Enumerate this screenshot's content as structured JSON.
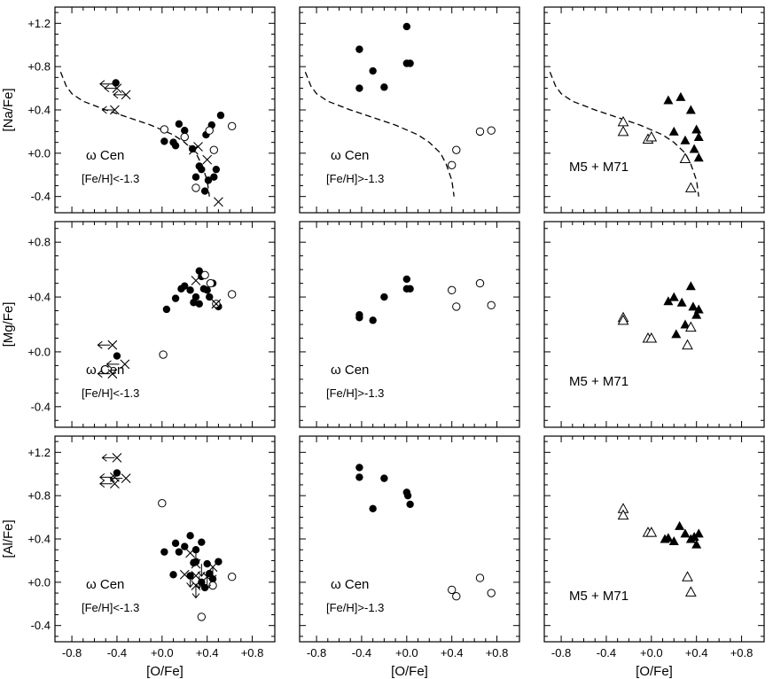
{
  "figure": {
    "x_axis_label": "[O/Fe]",
    "y_axis_labels": [
      "[Na/Fe]",
      "[Mg/Fe]",
      "[Al/Fe]"
    ]
  },
  "chart_data": [
    {
      "type": "scatter",
      "row": 0,
      "col": 0,
      "xlim": [
        -0.95,
        1.0
      ],
      "ylim": [
        -0.55,
        1.35
      ],
      "xticks": [
        -0.8,
        -0.4,
        0.0,
        0.4,
        0.8
      ],
      "xtick_labels": [
        "",
        "",
        "",
        "",
        ""
      ],
      "yticks": [
        -0.4,
        0.0,
        0.4,
        0.8,
        1.2
      ],
      "ytick_labels": [
        "-0.4",
        "+0.0",
        "+0.4",
        "+0.8",
        "+1.2"
      ],
      "annotation": "ω  Cen",
      "annotation_sub": "[Fe/H]<-1.3",
      "curve": [
        [
          -0.9,
          0.75
        ],
        [
          -0.85,
          0.62
        ],
        [
          -0.8,
          0.55
        ],
        [
          -0.7,
          0.48
        ],
        [
          -0.5,
          0.4
        ],
        [
          -0.3,
          0.33
        ],
        [
          -0.1,
          0.26
        ],
        [
          0.1,
          0.17
        ],
        [
          0.2,
          0.1
        ],
        [
          0.3,
          0.0
        ],
        [
          0.35,
          -0.1
        ],
        [
          0.4,
          -0.25
        ],
        [
          0.42,
          -0.4
        ]
      ],
      "filled_circles": [
        [
          -0.41,
          0.65
        ],
        [
          0.02,
          0.11
        ],
        [
          0.1,
          0.1
        ],
        [
          0.12,
          0.07
        ],
        [
          0.15,
          0.27
        ],
        [
          0.2,
          0.21
        ],
        [
          0.27,
          0.04
        ],
        [
          0.3,
          -0.22
        ],
        [
          0.33,
          -0.12
        ],
        [
          0.35,
          -0.15
        ],
        [
          0.38,
          -0.35
        ],
        [
          0.39,
          0.17
        ],
        [
          0.41,
          -0.25
        ],
        [
          0.44,
          0.26
        ],
        [
          0.46,
          -0.22
        ],
        [
          0.48,
          -0.15
        ],
        [
          0.52,
          0.35
        ]
      ],
      "open_circles": [
        [
          0.02,
          0.22
        ],
        [
          0.2,
          0.15
        ],
        [
          0.3,
          -0.32
        ],
        [
          0.42,
          0.21
        ],
        [
          0.46,
          0.03
        ],
        [
          0.62,
          0.25
        ]
      ],
      "crosses": [
        [
          -0.4,
          0.6
        ],
        [
          -0.32,
          0.54
        ],
        [
          -0.42,
          0.4
        ],
        [
          0.28,
          0.03
        ],
        [
          0.32,
          0.06
        ],
        [
          0.4,
          -0.06
        ],
        [
          0.5,
          -0.45
        ]
      ],
      "upper_limits": [
        [
          -0.44,
          0.64
        ],
        [
          -0.4,
          0.6
        ],
        [
          -0.32,
          0.54
        ],
        [
          -0.42,
          0.4
        ]
      ]
    },
    {
      "type": "scatter",
      "row": 0,
      "col": 1,
      "xlim": [
        -0.95,
        1.0
      ],
      "ylim": [
        -0.55,
        1.35
      ],
      "xticks": [
        -0.8,
        -0.4,
        0.0,
        0.4,
        0.8
      ],
      "xtick_labels": [
        "",
        "",
        "",
        "",
        ""
      ],
      "yticks": [
        -0.4,
        0.0,
        0.4,
        0.8,
        1.2
      ],
      "ytick_labels": [
        "",
        "",
        "",
        "",
        ""
      ],
      "annotation": "ω  Cen",
      "annotation_sub": "[Fe/H]>-1.3",
      "curve": [
        [
          -0.9,
          0.75
        ],
        [
          -0.85,
          0.62
        ],
        [
          -0.8,
          0.55
        ],
        [
          -0.7,
          0.48
        ],
        [
          -0.5,
          0.4
        ],
        [
          -0.3,
          0.33
        ],
        [
          -0.1,
          0.26
        ],
        [
          0.1,
          0.17
        ],
        [
          0.2,
          0.1
        ],
        [
          0.3,
          0.0
        ],
        [
          0.35,
          -0.1
        ],
        [
          0.4,
          -0.25
        ],
        [
          0.42,
          -0.4
        ]
      ],
      "filled_circles": [
        [
          -0.42,
          0.96
        ],
        [
          -0.42,
          0.6
        ],
        [
          -0.3,
          0.76
        ],
        [
          -0.2,
          0.61
        ],
        [
          0.0,
          1.17
        ],
        [
          0.0,
          0.83
        ],
        [
          0.03,
          0.83
        ]
      ],
      "open_circles": [
        [
          0.4,
          -0.11
        ],
        [
          0.44,
          0.03
        ],
        [
          0.65,
          0.2
        ],
        [
          0.75,
          0.21
        ]
      ],
      "crosses": [],
      "upper_limits": []
    },
    {
      "type": "scatter",
      "row": 0,
      "col": 2,
      "xlim": [
        -0.95,
        1.0
      ],
      "ylim": [
        -0.55,
        1.35
      ],
      "xticks": [
        -0.8,
        -0.4,
        0.0,
        0.4,
        0.8
      ],
      "xtick_labels": [
        "",
        "",
        "",
        "",
        ""
      ],
      "yticks": [
        -0.4,
        0.0,
        0.4,
        0.8,
        1.2
      ],
      "ytick_labels": [
        "",
        "",
        "",
        "",
        ""
      ],
      "annotation": "M5  +  M71",
      "annotation_sub": "",
      "curve": [
        [
          -0.9,
          0.75
        ],
        [
          -0.85,
          0.62
        ],
        [
          -0.8,
          0.55
        ],
        [
          -0.7,
          0.48
        ],
        [
          -0.5,
          0.4
        ],
        [
          -0.3,
          0.33
        ],
        [
          -0.1,
          0.26
        ],
        [
          0.1,
          0.17
        ],
        [
          0.2,
          0.1
        ],
        [
          0.3,
          0.0
        ],
        [
          0.35,
          -0.1
        ],
        [
          0.4,
          -0.25
        ],
        [
          0.42,
          -0.4
        ]
      ],
      "filled_triangles": [
        [
          0.15,
          0.49
        ],
        [
          0.2,
          0.2
        ],
        [
          0.26,
          0.52
        ],
        [
          0.3,
          0.12
        ],
        [
          0.35,
          0.4
        ],
        [
          0.38,
          0.04
        ],
        [
          0.4,
          0.22
        ],
        [
          0.42,
          -0.04
        ],
        [
          0.42,
          0.15
        ]
      ],
      "open_triangles": [
        [
          -0.25,
          0.29
        ],
        [
          -0.25,
          0.2
        ],
        [
          -0.03,
          0.13
        ],
        [
          0.0,
          0.15
        ],
        [
          0.3,
          -0.05
        ],
        [
          0.35,
          -0.32
        ]
      ]
    },
    {
      "type": "scatter",
      "row": 1,
      "col": 0,
      "xlim": [
        -0.95,
        1.0
      ],
      "ylim": [
        -0.55,
        0.95
      ],
      "xticks": [
        -0.8,
        -0.4,
        0.0,
        0.4,
        0.8
      ],
      "xtick_labels": [
        "",
        "",
        "",
        "",
        ""
      ],
      "yticks": [
        -0.4,
        0.0,
        0.4,
        0.8
      ],
      "ytick_labels": [
        "-0.4",
        "+0.0",
        "+0.4",
        "+0.8"
      ],
      "annotation": "ω  Cen",
      "annotation_sub": "[Fe/H]<-1.3",
      "filled_circles": [
        [
          -0.4,
          -0.03
        ],
        [
          0.04,
          0.31
        ],
        [
          0.12,
          0.39
        ],
        [
          0.17,
          0.46
        ],
        [
          0.2,
          0.48
        ],
        [
          0.25,
          0.45
        ],
        [
          0.28,
          0.36
        ],
        [
          0.3,
          0.4
        ],
        [
          0.33,
          0.59
        ],
        [
          0.33,
          0.35
        ],
        [
          0.35,
          0.55
        ],
        [
          0.37,
          0.46
        ],
        [
          0.4,
          0.45
        ],
        [
          0.42,
          0.4
        ],
        [
          0.45,
          0.5
        ],
        [
          0.5,
          0.33
        ]
      ],
      "open_circles": [
        [
          0.01,
          -0.02
        ],
        [
          0.38,
          0.56
        ],
        [
          0.43,
          0.5
        ],
        [
          0.48,
          0.35
        ],
        [
          0.62,
          0.42
        ]
      ],
      "crosses": [
        [
          -0.44,
          0.05
        ],
        [
          -0.44,
          -0.16
        ],
        [
          -0.33,
          -0.09
        ],
        [
          0.3,
          0.52
        ],
        [
          0.48,
          0.35
        ]
      ],
      "upper_limits": [
        [
          -0.46,
          0.05
        ],
        [
          -0.46,
          -0.16
        ],
        [
          -0.38,
          -0.09
        ]
      ]
    },
    {
      "type": "scatter",
      "row": 1,
      "col": 1,
      "xlim": [
        -0.95,
        1.0
      ],
      "ylim": [
        -0.55,
        0.95
      ],
      "xticks": [
        -0.8,
        -0.4,
        0.0,
        0.4,
        0.8
      ],
      "xtick_labels": [
        "",
        "",
        "",
        "",
        ""
      ],
      "yticks": [
        -0.4,
        0.0,
        0.4,
        0.8
      ],
      "ytick_labels": [
        "",
        "",
        "",
        "",
        ""
      ],
      "annotation": "ω  Cen",
      "annotation_sub": "[Fe/H]>-1.3",
      "filled_circles": [
        [
          -0.42,
          0.27
        ],
        [
          -0.42,
          0.25
        ],
        [
          -0.3,
          0.23
        ],
        [
          -0.2,
          0.4
        ],
        [
          0.0,
          0.53
        ],
        [
          0.0,
          0.46
        ],
        [
          0.03,
          0.46
        ]
      ],
      "open_circles": [
        [
          0.4,
          0.45
        ],
        [
          0.44,
          0.33
        ],
        [
          0.65,
          0.5
        ],
        [
          0.75,
          0.34
        ]
      ],
      "crosses": [],
      "upper_limits": []
    },
    {
      "type": "scatter",
      "row": 1,
      "col": 2,
      "xlim": [
        -0.95,
        1.0
      ],
      "ylim": [
        -0.55,
        0.95
      ],
      "xticks": [
        -0.8,
        -0.4,
        0.0,
        0.4,
        0.8
      ],
      "xtick_labels": [
        "",
        "",
        "",
        "",
        ""
      ],
      "yticks": [
        -0.4,
        0.0,
        0.4,
        0.8
      ],
      "ytick_labels": [
        "",
        "",
        "",
        "",
        ""
      ],
      "annotation": "M5  +  M71",
      "annotation_sub": "",
      "filled_triangles": [
        [
          0.15,
          0.37
        ],
        [
          0.2,
          0.4
        ],
        [
          0.22,
          0.13
        ],
        [
          0.27,
          0.36
        ],
        [
          0.3,
          0.2
        ],
        [
          0.35,
          0.48
        ],
        [
          0.37,
          0.33
        ],
        [
          0.4,
          0.27
        ],
        [
          0.42,
          0.31
        ]
      ],
      "open_triangles": [
        [
          -0.25,
          0.25
        ],
        [
          -0.25,
          0.23
        ],
        [
          -0.03,
          0.1
        ],
        [
          0.0,
          0.1
        ],
        [
          0.32,
          0.05
        ],
        [
          0.35,
          0.18
        ]
      ]
    },
    {
      "type": "scatter",
      "row": 2,
      "col": 0,
      "xlim": [
        -0.95,
        1.0
      ],
      "ylim": [
        -0.55,
        1.35
      ],
      "xticks": [
        -0.8,
        -0.4,
        0.0,
        0.4,
        0.8
      ],
      "xtick_labels": [
        "-0.8",
        "-0.4",
        "+0.0",
        "+0.4",
        "+0.8"
      ],
      "yticks": [
        -0.4,
        0.0,
        0.4,
        0.8,
        1.2
      ],
      "ytick_labels": [
        "-0.4",
        "+0.0",
        "+0.4",
        "+0.8",
        "+1.2"
      ],
      "annotation": "ω  Cen",
      "annotation_sub": "[Fe/H]<-1.3",
      "filled_circles": [
        [
          -0.4,
          1.01
        ],
        [
          0.02,
          0.28
        ],
        [
          0.1,
          0.07
        ],
        [
          0.12,
          0.36
        ],
        [
          0.15,
          0.28
        ],
        [
          0.2,
          0.33
        ],
        [
          0.25,
          0.43
        ],
        [
          0.25,
          0.06
        ],
        [
          0.28,
          0.18
        ],
        [
          0.3,
          0.3
        ],
        [
          0.3,
          0.19
        ],
        [
          0.35,
          0.37
        ],
        [
          0.35,
          0.0
        ],
        [
          0.38,
          -0.05
        ],
        [
          0.4,
          0.17
        ],
        [
          0.42,
          0.08
        ],
        [
          0.45,
          0.03
        ],
        [
          0.5,
          0.19
        ]
      ],
      "open_circles": [
        [
          0.0,
          0.73
        ],
        [
          0.35,
          -0.32
        ],
        [
          0.45,
          -0.03
        ],
        [
          0.62,
          0.05
        ]
      ],
      "crosses": [
        [
          -0.4,
          1.15
        ],
        [
          -0.42,
          0.97
        ],
        [
          -0.32,
          0.96
        ],
        [
          -0.42,
          0.91
        ],
        [
          0.25,
          0.27
        ],
        [
          0.3,
          0.17
        ],
        [
          0.45,
          0.14
        ],
        [
          0.2,
          0.07
        ],
        [
          0.3,
          0.06
        ],
        [
          0.4,
          0.05
        ],
        [
          0.3,
          -0.03
        ]
      ],
      "upper_limits": [],
      "arrows_down": [
        [
          0.3,
          0.27
        ],
        [
          0.35,
          0.17
        ],
        [
          0.45,
          0.14
        ],
        [
          0.25,
          0.07
        ],
        [
          0.33,
          0.06
        ],
        [
          0.4,
          0.05
        ],
        [
          0.3,
          -0.03
        ]
      ],
      "arrows_left": [
        [
          -0.42,
          1.15
        ],
        [
          -0.44,
          0.97
        ],
        [
          -0.35,
          0.96
        ],
        [
          -0.44,
          0.91
        ]
      ]
    },
    {
      "type": "scatter",
      "row": 2,
      "col": 1,
      "xlim": [
        -0.95,
        1.0
      ],
      "ylim": [
        -0.55,
        1.35
      ],
      "xticks": [
        -0.8,
        -0.4,
        0.0,
        0.4,
        0.8
      ],
      "xtick_labels": [
        "-0.8",
        "-0.4",
        "+0.0",
        "+0.4",
        "+0.8"
      ],
      "yticks": [
        -0.4,
        0.0,
        0.4,
        0.8,
        1.2
      ],
      "ytick_labels": [
        "",
        "",
        "",
        "",
        ""
      ],
      "annotation": "ω  Cen",
      "annotation_sub": "[Fe/H]>-1.3",
      "filled_circles": [
        [
          -0.42,
          1.06
        ],
        [
          -0.42,
          0.97
        ],
        [
          -0.3,
          0.68
        ],
        [
          -0.2,
          0.96
        ],
        [
          0.0,
          0.83
        ],
        [
          0.01,
          0.8
        ],
        [
          0.03,
          0.72
        ]
      ],
      "open_circles": [
        [
          0.4,
          -0.07
        ],
        [
          0.44,
          -0.13
        ],
        [
          0.65,
          0.04
        ],
        [
          0.75,
          -0.1
        ]
      ],
      "crosses": [],
      "upper_limits": []
    },
    {
      "type": "scatter",
      "row": 2,
      "col": 2,
      "xlim": [
        -0.95,
        1.0
      ],
      "ylim": [
        -0.55,
        1.35
      ],
      "xticks": [
        -0.8,
        -0.4,
        0.0,
        0.4,
        0.8
      ],
      "xtick_labels": [
        "-0.8",
        "-0.4",
        "+0.0",
        "+0.4",
        "+0.8"
      ],
      "yticks": [
        -0.4,
        0.0,
        0.4,
        0.8,
        1.2
      ],
      "ytick_labels": [
        "",
        "",
        "",
        "",
        ""
      ],
      "annotation": "M5  +  M71",
      "annotation_sub": "",
      "filled_triangles": [
        [
          0.12,
          0.4
        ],
        [
          0.15,
          0.41
        ],
        [
          0.2,
          0.38
        ],
        [
          0.25,
          0.52
        ],
        [
          0.3,
          0.45
        ],
        [
          0.35,
          0.4
        ],
        [
          0.38,
          0.42
        ],
        [
          0.4,
          0.35
        ],
        [
          0.42,
          0.45
        ]
      ],
      "open_triangles": [
        [
          -0.25,
          0.68
        ],
        [
          -0.25,
          0.62
        ],
        [
          -0.03,
          0.46
        ],
        [
          0.0,
          0.46
        ],
        [
          0.32,
          0.05
        ],
        [
          0.35,
          -0.09
        ]
      ]
    }
  ]
}
